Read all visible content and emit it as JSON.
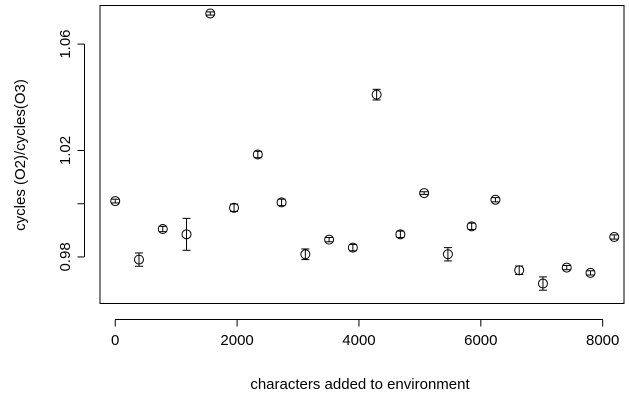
{
  "chart_data": {
    "type": "scatter",
    "title": "",
    "xlabel": "characters added to environment",
    "ylabel": "cycles (O2)/cycles(O3)",
    "xlim": [
      -250,
      8350
    ],
    "ylim": [
      0.9625,
      1.0745
    ],
    "grid": false,
    "xticks": [
      0,
      2000,
      4000,
      6000,
      8000
    ],
    "yticks": [
      0.98,
      1.02,
      1.06
    ],
    "xtick_labels": [
      "0",
      "2000",
      "4000",
      "6000",
      "8000"
    ],
    "ytick_labels": [
      "0.98",
      "1.02",
      "1.06"
    ],
    "y_hidden_ticks": [
      1.0
    ],
    "points": [
      {
        "x": 0,
        "y": 1.001,
        "err": 0.0007
      },
      {
        "x": 390,
        "y": 0.979,
        "err": 0.0025
      },
      {
        "x": 780,
        "y": 0.9905,
        "err": 0.001
      },
      {
        "x": 1170,
        "y": 0.9885,
        "err": 0.006
      },
      {
        "x": 1560,
        "y": 1.0715,
        "err": 0.0006
      },
      {
        "x": 1950,
        "y": 0.9985,
        "err": 0.0014
      },
      {
        "x": 2340,
        "y": 1.0185,
        "err": 0.0012
      },
      {
        "x": 2730,
        "y": 1.0005,
        "err": 0.0012
      },
      {
        "x": 3120,
        "y": 0.981,
        "err": 0.002
      },
      {
        "x": 3510,
        "y": 0.9865,
        "err": 0.0008
      },
      {
        "x": 3900,
        "y": 0.9835,
        "err": 0.0012
      },
      {
        "x": 4290,
        "y": 1.041,
        "err": 0.002
      },
      {
        "x": 4680,
        "y": 0.9885,
        "err": 0.0012
      },
      {
        "x": 5070,
        "y": 1.004,
        "err": 0.0005
      },
      {
        "x": 5460,
        "y": 0.981,
        "err": 0.0025
      },
      {
        "x": 5850,
        "y": 0.9915,
        "err": 0.0012
      },
      {
        "x": 6240,
        "y": 1.0015,
        "err": 0.0008
      },
      {
        "x": 6630,
        "y": 0.975,
        "err": 0.0016
      },
      {
        "x": 7020,
        "y": 0.97,
        "err": 0.0025
      },
      {
        "x": 7410,
        "y": 0.976,
        "err": 0.0008
      },
      {
        "x": 7800,
        "y": 0.974,
        "err": 0.0008
      },
      {
        "x": 8190,
        "y": 0.9875,
        "err": 0.0008
      }
    ]
  }
}
